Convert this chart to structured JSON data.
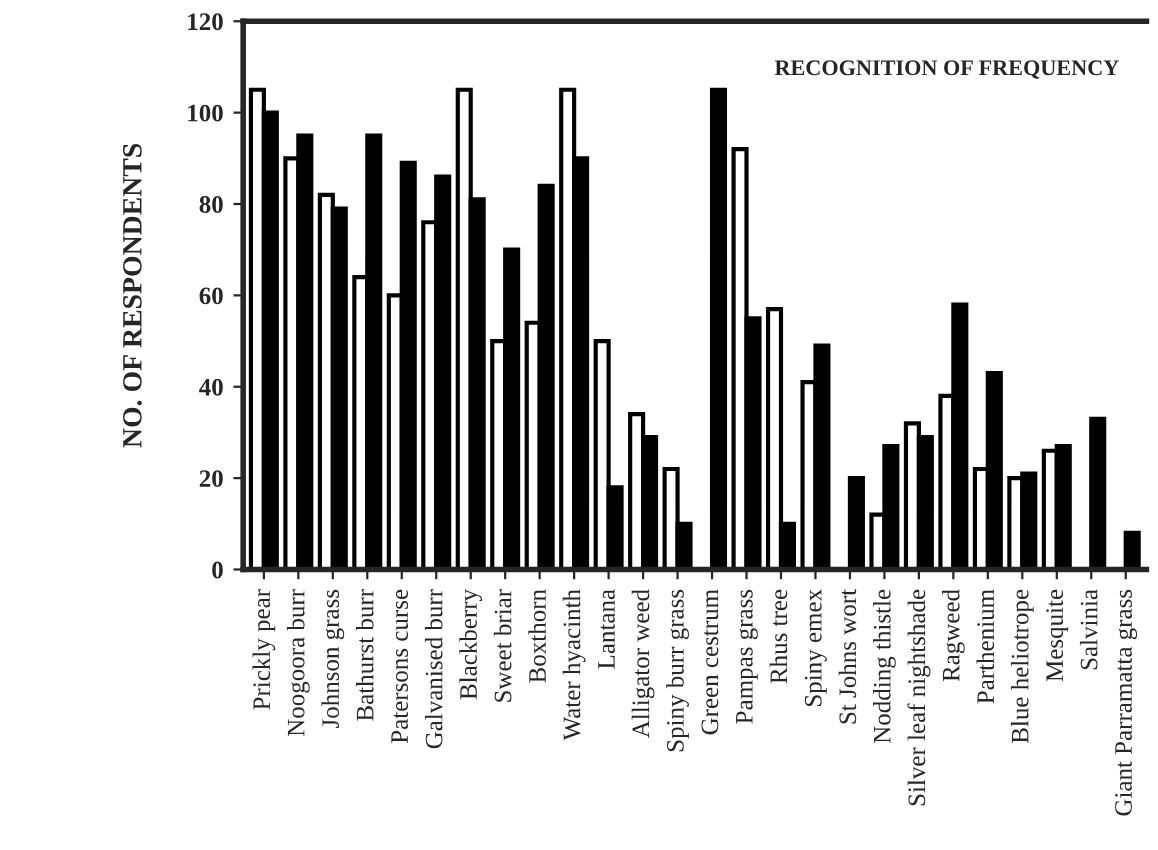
{
  "chart_data": {
    "type": "bar",
    "ylabel": "NO. OF RESPONDENTS",
    "annotations": [
      "RECOGNITION OF FREQUENCY"
    ],
    "categories": [
      "Prickly pear",
      "Noogoora burr",
      "Johnson grass",
      "Bathurst burr",
      "Patersons curse",
      "Galvanised burr",
      "Blackberry",
      "Sweet briar",
      "Boxthorn",
      "Water hyacinth",
      "Lantana",
      "Alligator weed",
      "Spiny burr grass",
      "Green cestrum",
      "Pampas grass",
      "Rhus tree",
      "Spiny emex",
      "St Johns wort",
      "Nodding thistle",
      "Silver leaf nightshade",
      "Ragweed",
      "Parthenium",
      "Blue heliotrope",
      "Mesquite",
      "Salvinia",
      "Giant Parramatta grass"
    ],
    "series": [
      {
        "color": "#ffffff",
        "values": [
          105,
          90,
          82,
          64,
          60,
          76,
          105,
          50,
          54,
          105,
          50,
          34,
          22,
          null,
          92,
          57,
          41,
          null,
          12,
          32,
          38,
          22,
          20,
          26,
          null,
          null
        ]
      },
      {
        "color": "#000000",
        "values": [
          100,
          95,
          79,
          95,
          89,
          86,
          81,
          70,
          84,
          90,
          18,
          29,
          10,
          105,
          55,
          10,
          49,
          20,
          27,
          29,
          58,
          43,
          21,
          27,
          33,
          8
        ]
      }
    ],
    "ylim": [
      0,
      120
    ],
    "yticks": [
      0,
      20,
      40,
      60,
      80,
      100,
      120
    ],
    "grid": false,
    "legend": false
  }
}
